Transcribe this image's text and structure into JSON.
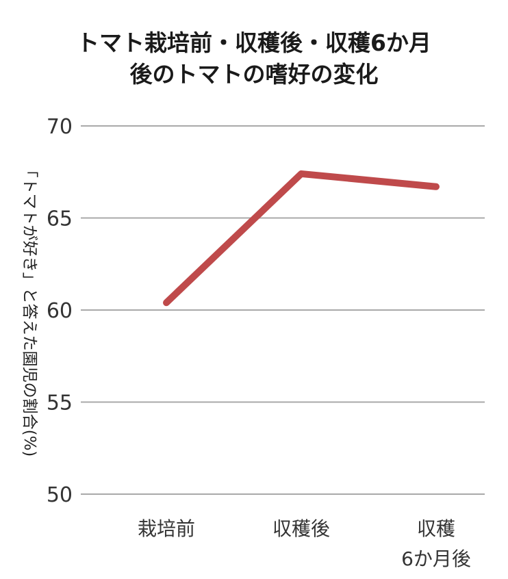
{
  "chart_data": {
    "type": "line",
    "title": [
      "トマト栽培前・収穫後・収穫6か月",
      "後のトマトの嗜好の変化"
    ],
    "ylabel": "「トマトが好き」と答えた園児の割合(%)",
    "xlabel": "",
    "categories": [
      [
        "栽培前"
      ],
      [
        "収穫後"
      ],
      [
        "収穫",
        "6か月後"
      ]
    ],
    "series": [
      {
        "values": [
          60.4,
          67.4,
          66.7
        ]
      }
    ],
    "ylim": [
      50,
      70
    ],
    "yticks": [
      50,
      55,
      60,
      65,
      70
    ],
    "grid": true,
    "colors": {
      "line": "#bf4a4b",
      "grid": "#a9a9a9"
    }
  }
}
